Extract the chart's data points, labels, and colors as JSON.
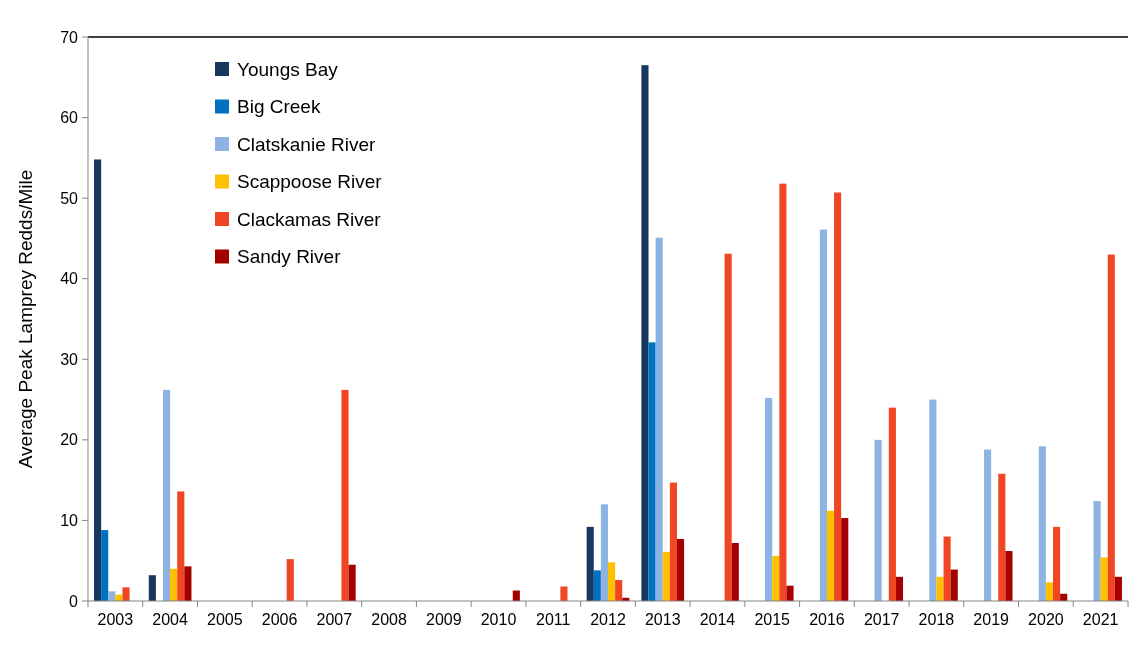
{
  "chart_data": {
    "type": "bar",
    "ylabel": "Average Peak Lamprey Redds/Mile",
    "categories": [
      "2003",
      "2004",
      "2005",
      "2006",
      "2007",
      "2008",
      "2009",
      "2010",
      "2011",
      "2012",
      "2013",
      "2014",
      "2015",
      "2016",
      "2017",
      "2018",
      "2019",
      "2020",
      "2021"
    ],
    "series": [
      {
        "name": "Youngs Bay",
        "color": "#17375e",
        "values": [
          54.8,
          3.2,
          null,
          null,
          null,
          null,
          null,
          null,
          null,
          9.2,
          66.5,
          null,
          null,
          null,
          null,
          null,
          null,
          null,
          null
        ]
      },
      {
        "name": "Big Creek",
        "color": "#0070c0",
        "values": [
          8.8,
          null,
          null,
          null,
          null,
          null,
          null,
          null,
          null,
          3.8,
          32.1,
          null,
          null,
          null,
          null,
          null,
          null,
          null,
          null
        ]
      },
      {
        "name": "Clatskanie River",
        "color": "#8db3e2",
        "values": [
          1.2,
          26.2,
          null,
          null,
          null,
          null,
          null,
          null,
          null,
          12.0,
          45.1,
          null,
          25.2,
          46.1,
          20.0,
          25.0,
          18.8,
          19.2,
          12.4
        ]
      },
      {
        "name": "Scappoose River",
        "color": "#ffc000",
        "values": [
          0.8,
          4.0,
          null,
          null,
          null,
          null,
          null,
          null,
          null,
          4.8,
          6.1,
          null,
          5.6,
          11.2,
          null,
          3.0,
          null,
          2.3,
          5.4
        ]
      },
      {
        "name": "Clackamas River",
        "color": "#f04623",
        "values": [
          1.7,
          13.6,
          null,
          5.2,
          26.2,
          null,
          null,
          null,
          1.8,
          2.6,
          14.7,
          43.1,
          51.8,
          50.7,
          24.0,
          8.0,
          15.8,
          9.2,
          43.0
        ]
      },
      {
        "name": "Sandy River",
        "color": "#a50000",
        "values": [
          null,
          4.3,
          null,
          null,
          4.5,
          null,
          null,
          1.3,
          null,
          0.4,
          7.7,
          7.2,
          1.9,
          10.3,
          3.0,
          3.9,
          6.2,
          0.9,
          3.0
        ]
      }
    ],
    "ylim": [
      0,
      70
    ],
    "yticks": [
      0,
      10,
      20,
      30,
      40,
      50,
      60,
      70
    ],
    "grid": false,
    "legend": "top left"
  }
}
